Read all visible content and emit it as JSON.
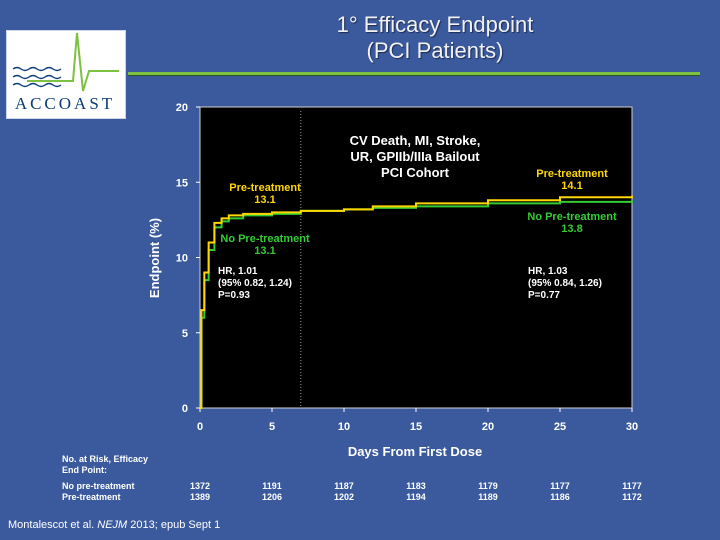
{
  "slide": {
    "title_line1": "1° Efficacy Endpoint",
    "title_line2": "(PCI Patients)",
    "logo_text": "ACCOAST",
    "citation_pre": "Montalescot et al. ",
    "citation_journal": "NEJM",
    "citation_post": " 2013; epub Sept 1"
  },
  "colors": {
    "background": "#3b5a9d",
    "plot_background": "#000000",
    "no_pretreatment": "#33cc33",
    "pretreatment": "#ffd700",
    "grid_dotted": "#9a9a9a",
    "accent_rule": "#7cc142"
  },
  "chart_data": {
    "type": "line",
    "xlabel": "Days From First Dose",
    "ylabel": "Endpoint (%)",
    "xlim": [
      0,
      30
    ],
    "ylim": [
      0,
      20
    ],
    "x_ticks": [
      0,
      5,
      10,
      15,
      20,
      25,
      30
    ],
    "y_ticks": [
      0,
      5,
      10,
      15,
      20
    ],
    "reference_line_x": 7,
    "annotation_cohort": [
      "CV Death, MI, Stroke,",
      "UR, GPIIb/IIIa Bailout",
      "PCI Cohort"
    ],
    "series": [
      {
        "name": "No Pre-treatment",
        "color": "#33cc33",
        "x": [
          0,
          0.1,
          0.3,
          0.6,
          1.0,
          1.5,
          2.0,
          3.0,
          5.0,
          7.0,
          10.0,
          12.0,
          15.0,
          20.0,
          25.0,
          30.0
        ],
        "y": [
          0,
          6.0,
          8.5,
          10.5,
          12.0,
          12.4,
          12.6,
          12.8,
          12.9,
          13.1,
          13.2,
          13.3,
          13.4,
          13.6,
          13.7,
          13.8
        ]
      },
      {
        "name": "Pre-treatment",
        "color": "#ffd700",
        "x": [
          0,
          0.1,
          0.3,
          0.6,
          1.0,
          1.5,
          2.0,
          3.0,
          5.0,
          7.0,
          10.0,
          12.0,
          15.0,
          20.0,
          25.0,
          30.0
        ],
        "y": [
          0,
          6.5,
          9.0,
          11.0,
          12.3,
          12.6,
          12.8,
          12.9,
          13.0,
          13.1,
          13.2,
          13.4,
          13.6,
          13.8,
          14.0,
          14.1
        ]
      }
    ],
    "annotations": {
      "pre_left": [
        "Pre-treatment",
        "13.1"
      ],
      "nopre_left": [
        "No Pre-treatment",
        "13.1"
      ],
      "pre_right": [
        "Pre-treatment",
        "14.1"
      ],
      "nopre_right": [
        "No Pre-treatment",
        "13.8"
      ],
      "hr_left": [
        "HR, 1.01",
        "(95%  0.82, 1.24)",
        "P=0.93"
      ],
      "hr_right": [
        "HR, 1.03",
        "(95% 0.84, 1.26)",
        "P=0.77"
      ]
    },
    "risk_table": {
      "title": [
        "No. at Risk, Efficacy",
        "End Point:"
      ],
      "rows": [
        {
          "label": "No pre-treatment",
          "values": [
            "1372",
            "1191",
            "1187",
            "1183",
            "1179",
            "1177",
            "1177"
          ]
        },
        {
          "label": "Pre-treatment",
          "values": [
            "1389",
            "1206",
            "1202",
            "1194",
            "1189",
            "1186",
            "1172"
          ]
        }
      ]
    }
  }
}
